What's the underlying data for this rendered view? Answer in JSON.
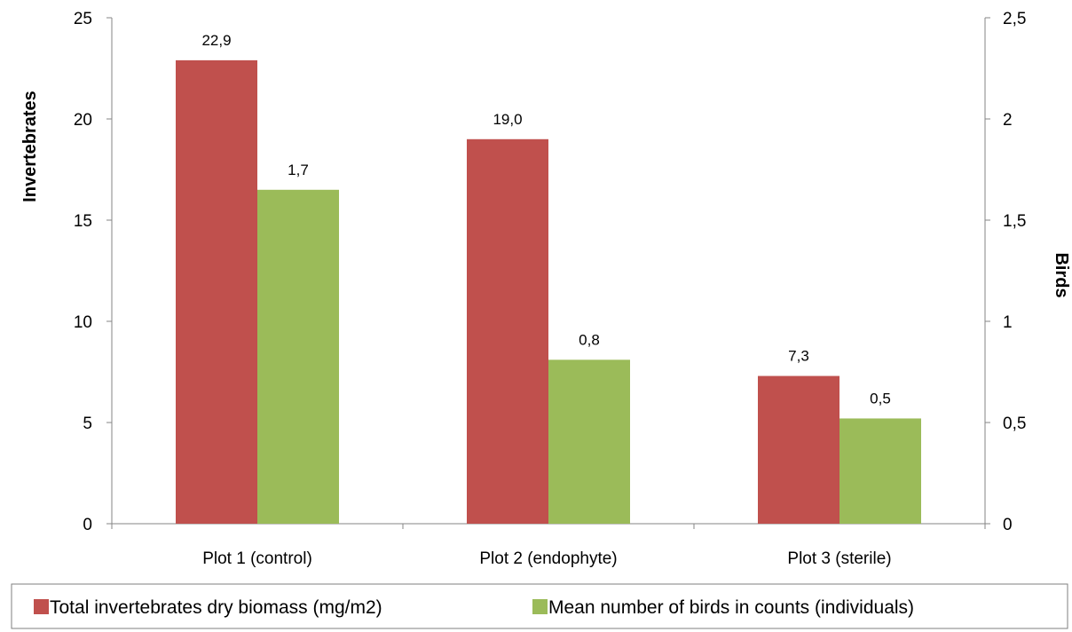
{
  "chart_data": {
    "type": "bar",
    "categories": [
      "Plot 1 (control)",
      "Plot 2 (endophyte)",
      "Plot 3 (sterile)"
    ],
    "series": [
      {
        "name": "Total invertebrates dry biomass (mg/m2)",
        "axis": "left",
        "color": "#C0504D",
        "values": [
          22.9,
          19.0,
          7.3
        ],
        "labels": [
          "22,9",
          "19,0",
          "7,3"
        ]
      },
      {
        "name": "Mean number of birds in counts (individuals)",
        "axis": "right",
        "color": "#9BBB59",
        "values": [
          1.65,
          0.81,
          0.52
        ],
        "labels": [
          "1,7",
          "0,8",
          "0,5"
        ]
      }
    ],
    "ylabel": "Invertebrates",
    "y2label": "Birds",
    "ylim": [
      0,
      25
    ],
    "y2lim": [
      0,
      2.5
    ],
    "yticks": [
      "0",
      "5",
      "10",
      "15",
      "20",
      "25"
    ],
    "y2ticks": [
      "0",
      "0,5",
      "1",
      "1,5",
      "2",
      "2,5"
    ],
    "grid": false,
    "legend_position": "bottom"
  }
}
